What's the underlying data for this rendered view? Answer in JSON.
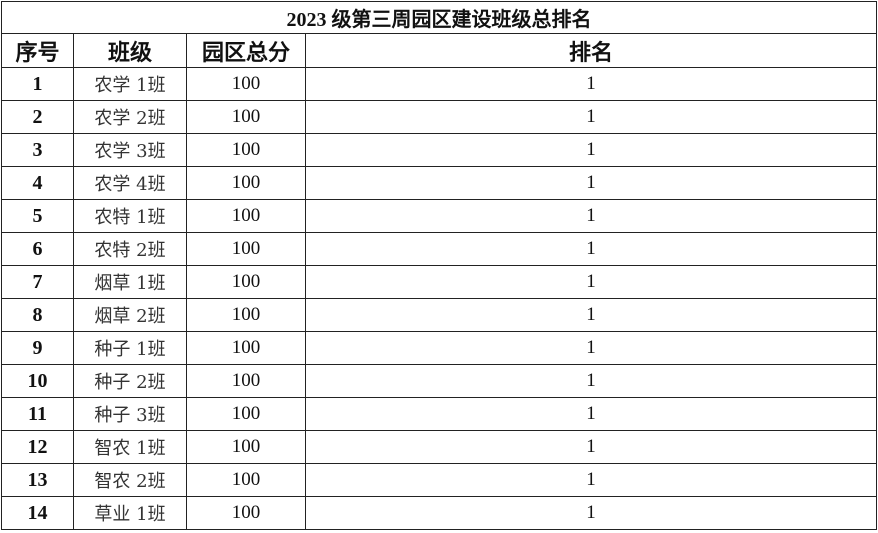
{
  "title": "2023 级第三周园区建设班级总排名",
  "headers": [
    "序号",
    "班级",
    "园区总分",
    "排名"
  ],
  "rows": [
    [
      "1",
      "农学 1班",
      "100",
      "1"
    ],
    [
      "2",
      "农学 2班",
      "100",
      "1"
    ],
    [
      "3",
      "农学 3班",
      "100",
      "1"
    ],
    [
      "4",
      "农学 4班",
      "100",
      "1"
    ],
    [
      "5",
      "农特 1班",
      "100",
      "1"
    ],
    [
      "6",
      "农特 2班",
      "100",
      "1"
    ],
    [
      "7",
      "烟草 1班",
      "100",
      "1"
    ],
    [
      "8",
      "烟草 2班",
      "100",
      "1"
    ],
    [
      "9",
      "种子 1班",
      "100",
      "1"
    ],
    [
      "10",
      "种子 2班",
      "100",
      "1"
    ],
    [
      "11",
      "种子 3班",
      "100",
      "1"
    ],
    [
      "12",
      "智农 1班",
      "100",
      "1"
    ],
    [
      "13",
      "智农 2班",
      "100",
      "1"
    ],
    [
      "14",
      "草业 1班",
      "100",
      "1"
    ]
  ]
}
